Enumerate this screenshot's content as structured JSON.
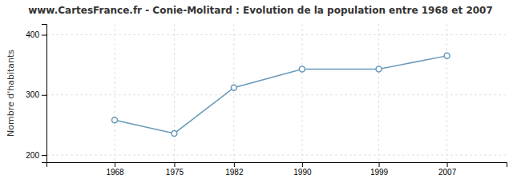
{
  "chart_data": {
    "type": "line",
    "title": "www.CartesFrance.fr - Conie-Molitard : Evolution de la population entre 1968 et 2007",
    "ylabel": "Nombre d'habitants",
    "x": [
      1968,
      1975,
      1982,
      1990,
      1999,
      2007
    ],
    "values": [
      258,
      236,
      312,
      343,
      343,
      365
    ],
    "xlim": [
      1960,
      2014
    ],
    "ylim": [
      188,
      418
    ],
    "xticks": [
      1968,
      1975,
      1982,
      1990,
      1999,
      2007
    ],
    "yticks": [
      200,
      300,
      400
    ],
    "grid": true,
    "color": "#6699bb",
    "marker": "circle"
  }
}
